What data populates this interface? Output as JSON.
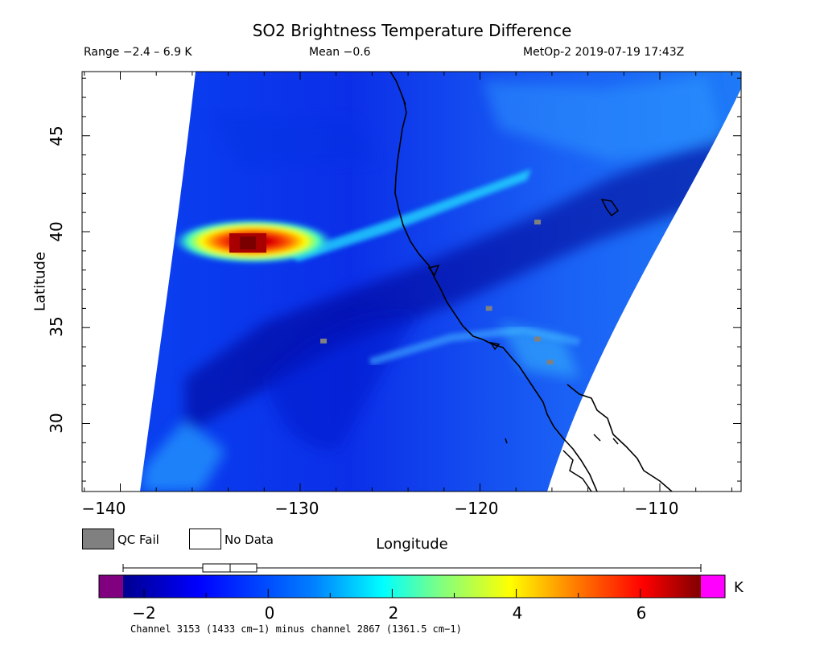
{
  "title": "SO2 Brightness Temperature Difference",
  "subtitle": {
    "range": "Range −2.4 – 6.9 K",
    "mean": "Mean −0.6",
    "satellite_time": "MetOp-2 2019-07-19 17:43Z"
  },
  "axes": {
    "xlabel": "Longitude",
    "ylabel": "Latitude",
    "xlim": [
      -142,
      -105
    ],
    "ylim": [
      26.5,
      48.3
    ],
    "xticks": [
      -140,
      -130,
      -120,
      -110
    ],
    "xtick_labels": [
      "−140",
      "−130",
      "−120",
      "−110"
    ],
    "yticks": [
      30,
      35,
      40,
      45
    ],
    "ytick_labels": [
      "30",
      "35",
      "40",
      "45"
    ]
  },
  "legend": {
    "qc_fail": {
      "label": "QC Fail",
      "color": "#808080"
    },
    "no_data": {
      "label": "No Data",
      "color": "#ffffff"
    }
  },
  "colorbar": {
    "unit": "K",
    "range": [
      -2.4,
      6.9
    ],
    "ticks": [
      -2,
      0,
      2,
      4,
      6
    ],
    "tick_labels": [
      "−2",
      "0",
      "2",
      "4",
      "6"
    ],
    "under_color": "#800080",
    "over_color": "#ff00ff",
    "stops": [
      "#00008f",
      "#0000ff",
      "#0080ff",
      "#00ffff",
      "#80ff80",
      "#ffff00",
      "#ff8000",
      "#ff0000",
      "#800000"
    ],
    "boxplot": {
      "min": -2.4,
      "q1": -1.1,
      "median": -0.65,
      "q3": -0.2,
      "max": 6.9
    }
  },
  "caption": "Channel 3153 (1433 cm−1) minus channel 2867 (1361.5 cm−1)",
  "map_features": {
    "volcanic_plume": {
      "color_peak": "#a00000",
      "lon": -132.5,
      "lat": 39.3,
      "peak_K": 6.9
    },
    "qc_fail_pixels": [
      {
        "lon": -128.7,
        "lat": 34.3
      },
      {
        "lon": -119.5,
        "lat": 36.0
      },
      {
        "lon": -116.8,
        "lat": 34.4
      },
      {
        "lon": -116.1,
        "lat": 33.2
      },
      {
        "lon": -116.8,
        "lat": 40.5
      }
    ]
  }
}
